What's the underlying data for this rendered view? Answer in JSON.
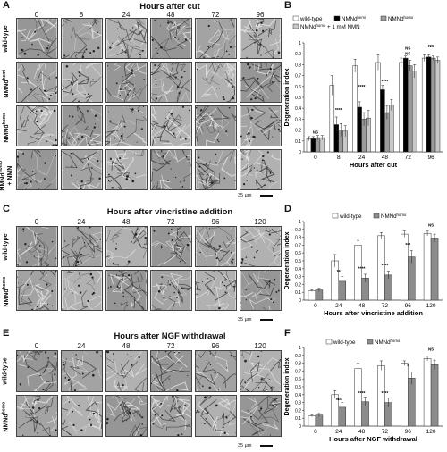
{
  "panels": {
    "A": {
      "letter": "A",
      "title": "Hours after cut",
      "columns": [
        "0",
        "8",
        "24",
        "48",
        "72",
        "96"
      ],
      "rows": [
        {
          "base": "wild-type",
          "sup": ""
        },
        {
          "base": "NMNd",
          "sup": "hemi"
        },
        {
          "base": "NMNd",
          "sup": "homo"
        },
        {
          "base": "NMNd",
          "sup": "homo",
          "extra": "+ NMN"
        }
      ],
      "scale": "35 µm"
    },
    "C": {
      "letter": "C",
      "title": "Hours after vincristine addition",
      "columns": [
        "0",
        "24",
        "48",
        "72",
        "96",
        "120"
      ],
      "rows": [
        {
          "base": "wild-type",
          "sup": ""
        },
        {
          "base": "NMNd",
          "sup": "homo"
        }
      ],
      "scale": "35 µm"
    },
    "E": {
      "letter": "E",
      "title": "Hours after NGF withdrawal",
      "columns": [
        "0",
        "24",
        "48",
        "72",
        "96",
        "120"
      ],
      "rows": [
        {
          "base": "wild-type",
          "sup": ""
        },
        {
          "base": "NMNd",
          "sup": "homo"
        }
      ],
      "scale": "35 µm"
    }
  },
  "chart_data": [
    {
      "panel": "B",
      "type": "bar",
      "xlabel": "Hours after cut",
      "ylabel": "Degeneration index",
      "categories": [
        "0",
        "8",
        "24",
        "48",
        "72",
        "96"
      ],
      "ylim": [
        0,
        1
      ],
      "yticks": [
        "0",
        "0.1",
        "0.2",
        "0.3",
        "0.4",
        "0.5",
        "0.6",
        "0.7",
        "0.8",
        "0.9",
        "1"
      ],
      "legend": [
        {
          "name": "wild-type",
          "sup": ""
        },
        {
          "name": "NMNd",
          "sup": "hemi"
        },
        {
          "name": "NMNd",
          "sup": "homo"
        },
        {
          "name": "NMNd",
          "sup": "homo",
          "suffix": " + 1 mM NMN"
        }
      ],
      "series": [
        {
          "name": "wild-type",
          "color": "#ffffff",
          "values": [
            0.12,
            0.61,
            0.79,
            0.82,
            0.82,
            0.86
          ],
          "errors": [
            0.02,
            0.09,
            0.06,
            0.07,
            0.04,
            0.03
          ]
        },
        {
          "name": "NMNd hemi",
          "color": "#000000",
          "values": [
            0.12,
            0.25,
            0.41,
            0.57,
            0.86,
            0.87
          ],
          "errors": [
            0.02,
            0.07,
            0.05,
            0.04,
            0.02,
            0.02
          ]
        },
        {
          "name": "NMNd homo",
          "color": "#9a9a9a",
          "values": [
            0.13,
            0.2,
            0.3,
            0.36,
            0.79,
            0.86
          ],
          "errors": [
            0.02,
            0.06,
            0.06,
            0.06,
            0.05,
            0.02
          ]
        },
        {
          "name": "NMNd homo + 1 mM NMN",
          "color": "#c8c8c8",
          "values": [
            0.13,
            0.19,
            0.31,
            0.43,
            0.74,
            0.84
          ],
          "errors": [
            0.02,
            0.05,
            0.07,
            0.05,
            0.06,
            0.03
          ]
        }
      ],
      "annotations": [
        "NS",
        "****",
        "****",
        "****",
        "NS",
        "NS",
        "NS"
      ]
    },
    {
      "panel": "D",
      "type": "bar",
      "xlabel": "Hours after vincristine addition",
      "ylabel": "Degeneration index",
      "categories": [
        "0",
        "24",
        "48",
        "72",
        "96",
        "120"
      ],
      "ylim": [
        0,
        1
      ],
      "yticks": [
        "0",
        "0.1",
        "0.2",
        "0.3",
        "0.4",
        "0.5",
        "0.6",
        "0.7",
        "0.8",
        "0.9",
        "1"
      ],
      "legend": [
        {
          "name": "wild-type",
          "sup": ""
        },
        {
          "name": "NMNd",
          "sup": "homo"
        }
      ],
      "series": [
        {
          "name": "wild-type",
          "color": "#ffffff",
          "values": [
            0.12,
            0.5,
            0.7,
            0.82,
            0.84,
            0.85
          ],
          "errors": [
            0.01,
            0.08,
            0.06,
            0.04,
            0.04,
            0.03
          ]
        },
        {
          "name": "NMNd homo",
          "color": "#8c8c8c",
          "values": [
            0.13,
            0.24,
            0.28,
            0.32,
            0.55,
            0.79
          ],
          "errors": [
            0.02,
            0.06,
            0.05,
            0.05,
            0.08,
            0.05
          ]
        }
      ],
      "annotations": [
        "**",
        "****",
        "****",
        "***",
        "NS"
      ]
    },
    {
      "panel": "F",
      "type": "bar",
      "xlabel": "Hours after NGF withdrawal",
      "ylabel": "Degeneration index",
      "categories": [
        "0",
        "24",
        "48",
        "72",
        "96",
        "120"
      ],
      "ylim": [
        0,
        1
      ],
      "yticks": [
        "0",
        "0.1",
        "0.2",
        "0.3",
        "0.4",
        "0.5",
        "0.6",
        "0.7",
        "0.8",
        "0.9",
        "1"
      ],
      "legend": [
        {
          "name": "wild-type",
          "sup": ""
        },
        {
          "name": "NMNd",
          "sup": "homo"
        }
      ],
      "series": [
        {
          "name": "wild-type",
          "color": "#ffffff",
          "values": [
            0.13,
            0.4,
            0.73,
            0.77,
            0.8,
            0.86
          ],
          "errors": [
            0.01,
            0.05,
            0.07,
            0.06,
            0.03,
            0.03
          ]
        },
        {
          "name": "NMNd homo",
          "color": "#8c8c8c",
          "values": [
            0.14,
            0.24,
            0.31,
            0.3,
            0.61,
            0.78
          ],
          "errors": [
            0.02,
            0.06,
            0.06,
            0.06,
            0.08,
            0.06
          ]
        }
      ],
      "annotations": [
        "NS",
        "****",
        "****",
        "*",
        "NS"
      ]
    }
  ]
}
